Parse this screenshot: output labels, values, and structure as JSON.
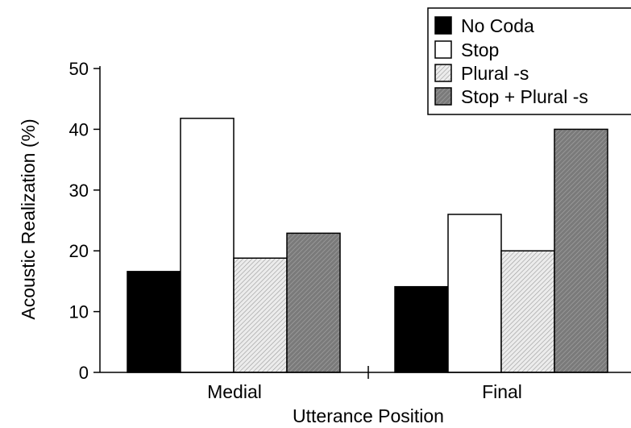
{
  "chart_data": {
    "type": "bar",
    "title": "",
    "xlabel": "Utterance Position",
    "ylabel": "Acoustic Realization (%)",
    "ylim": [
      0,
      50
    ],
    "yticks": [
      0,
      10,
      20,
      30,
      40,
      50
    ],
    "categories": [
      "Medial",
      "Final"
    ],
    "series": [
      {
        "name": "No Coda",
        "values": [
          16.6,
          14.1
        ],
        "fill": "solid-black",
        "color": "#000000"
      },
      {
        "name": "Stop",
        "values": [
          41.8,
          26.0
        ],
        "fill": "white",
        "color": "#ffffff"
      },
      {
        "name": "Plural -s",
        "values": [
          18.8,
          20.0
        ],
        "fill": "light-hatched",
        "color": "#e2e2e2"
      },
      {
        "name": "Stop + Plural -s",
        "values": [
          22.9,
          40.0
        ],
        "fill": "dark-hatched",
        "color": "#8a8a8a"
      }
    ],
    "legend_position": "top-right",
    "grid": false
  }
}
